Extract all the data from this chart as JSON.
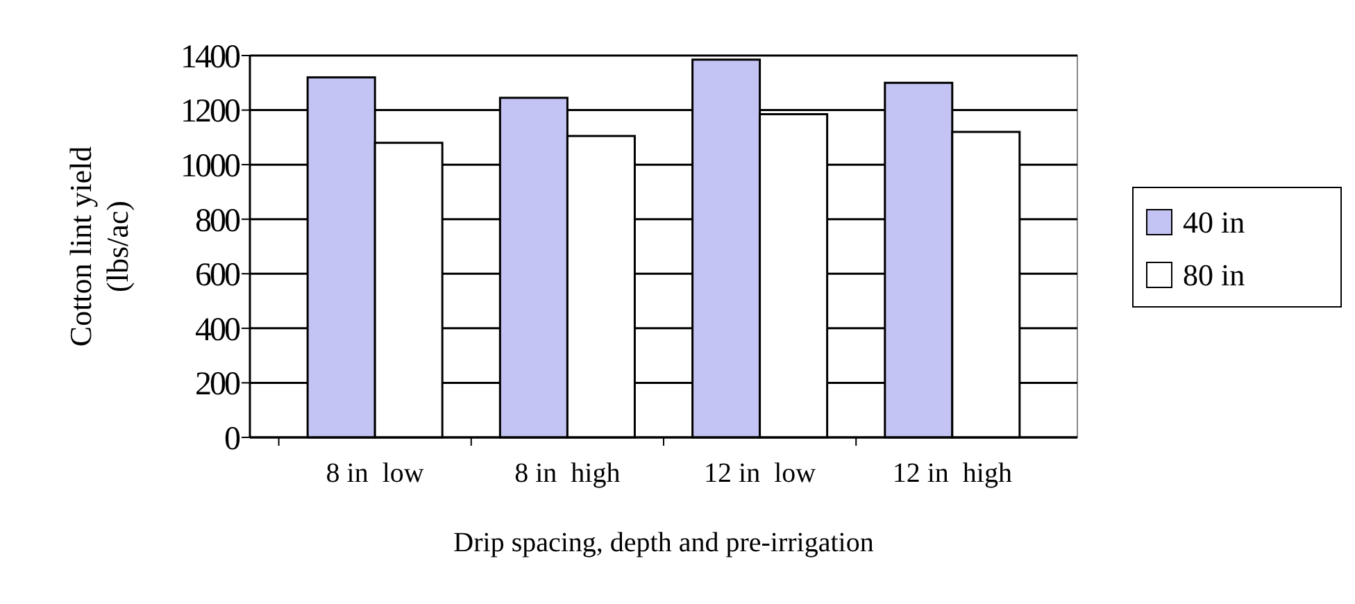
{
  "chart_data": {
    "type": "bar",
    "xlabel": "Drip spacing, depth and pre-irrigation",
    "ylabel": "Cotton lint yield (lbs/ac)",
    "categories": [
      "8 in  low",
      "8 in  high",
      "12 in  low",
      "12 in  high"
    ],
    "series": [
      {
        "name": "40 in",
        "color": "#c4c4f4",
        "values": [
          1320,
          1245,
          1385,
          1300
        ]
      },
      {
        "name": "80 in",
        "color": "#ffffff",
        "values": [
          1080,
          1105,
          1185,
          1120
        ]
      }
    ],
    "ylim": [
      0,
      1400
    ],
    "yticks": [
      0,
      200,
      400,
      600,
      800,
      1000,
      1200,
      1400
    ],
    "grid": "y",
    "legend": "right"
  }
}
